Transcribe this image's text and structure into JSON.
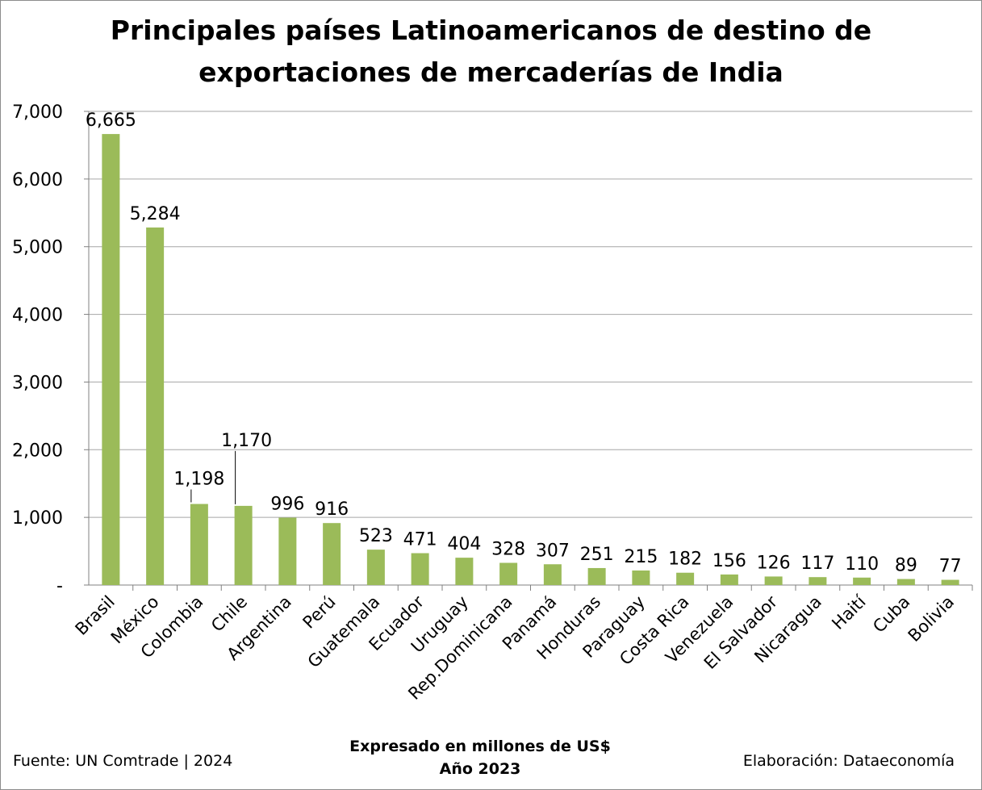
{
  "chart_data": {
    "type": "bar",
    "title": [
      "Principales países Latinoamericanos de destino de",
      "exportaciones de mercaderías de India"
    ],
    "categories": [
      "Brasil",
      "México",
      "Colombia",
      "Chile",
      "Argentina",
      "Perú",
      "Guatemala",
      "Ecuador",
      "Uruguay",
      "Rep.Dominicana",
      "Panamá",
      "Honduras",
      "Paraguay",
      "Costa Rica",
      "Venezuela",
      "El Salvador",
      "Nicaragua",
      "Haití",
      "Cuba",
      "Bolivia"
    ],
    "values": [
      6665,
      5284,
      1198,
      1170,
      996,
      916,
      523,
      471,
      404,
      328,
      307,
      251,
      215,
      182,
      156,
      126,
      117,
      110,
      89,
      77
    ],
    "data_labels": [
      "6,665",
      "5,284",
      "1,198",
      "1,170",
      "996",
      "916",
      "523",
      "471",
      "404",
      "328",
      "307",
      "251",
      "215",
      "182",
      "156",
      "126",
      "117",
      "110",
      "89",
      "77"
    ],
    "ylim": [
      0,
      7000
    ],
    "yticks": [
      0,
      1000,
      2000,
      3000,
      4000,
      5000,
      6000,
      7000
    ],
    "ytick_labels": [
      "-",
      "1,000",
      "2,000",
      "3,000",
      "4,000",
      "5,000",
      "6,000",
      "7,000"
    ],
    "xlabel": "",
    "ylabel": "",
    "grid": true,
    "bar_color": "#9bbb59",
    "gridline_color": "#a6a6a6",
    "subtitle": [
      "Expresado en millones de US$",
      "Año 2023"
    ]
  },
  "footer": {
    "source": "Fuente: UN Comtrade | 2024",
    "author": "Elaboración: Dataeconomía"
  }
}
